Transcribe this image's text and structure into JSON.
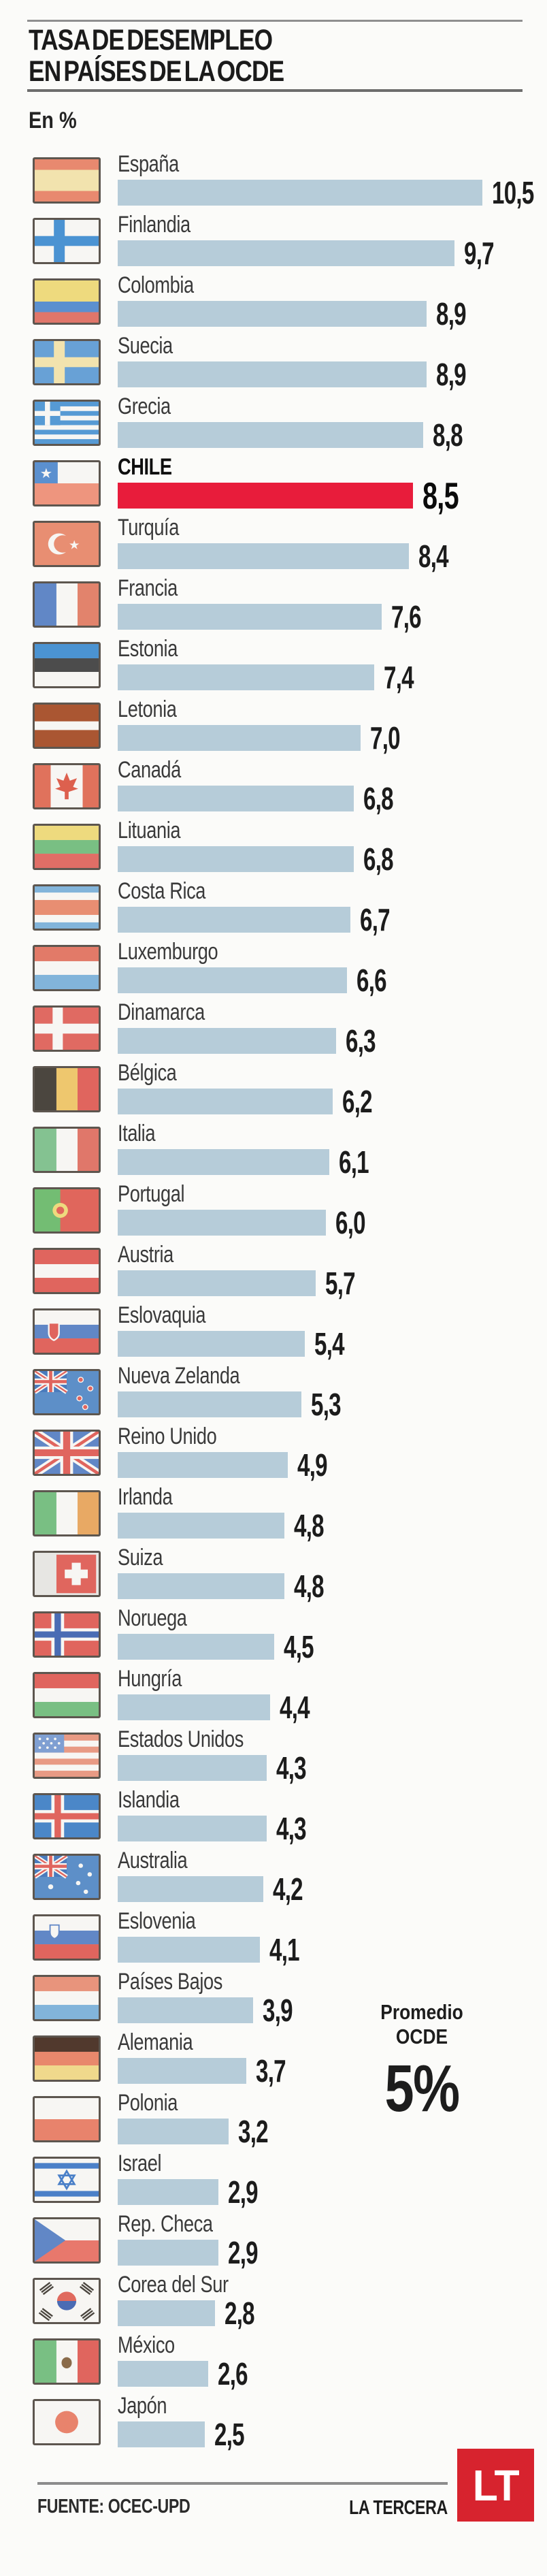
{
  "title": {
    "line1": "TASA DE DESEMPLEO",
    "line2": "EN PAÍSES DE LA OCDE"
  },
  "unit_label": "En %",
  "average": {
    "line1": "Promedio",
    "line2": "OCDE",
    "value": "5%"
  },
  "footer": {
    "source": "FUENTE: OCEC-UPD",
    "brand": "LA TERCERA",
    "logo_text": "LT"
  },
  "colors": {
    "bar": "#b6ccd9",
    "highlight_bar": "#e81c3b",
    "logo_red": "#d7232e",
    "flag_border": "#5d564f"
  },
  "chart_data": {
    "type": "bar",
    "orientation": "horizontal",
    "title": "TASA DE DESEMPLEO EN PAÍSES DE LA OCDE",
    "unit": "En %",
    "xlim": [
      0,
      10.5
    ],
    "grid": false,
    "average_label": "Promedio OCDE",
    "average_value": "5%",
    "highlighted_category": "CHILE",
    "rows": [
      {
        "country": "España",
        "flag": "es",
        "value": 10.5,
        "display": "10,5",
        "highlight": false
      },
      {
        "country": "Finlandia",
        "flag": "fi",
        "value": 9.7,
        "display": "9,7",
        "highlight": false
      },
      {
        "country": "Colombia",
        "flag": "co",
        "value": 8.9,
        "display": "8,9",
        "highlight": false
      },
      {
        "country": "Suecia",
        "flag": "se",
        "value": 8.9,
        "display": "8,9",
        "highlight": false
      },
      {
        "country": "Grecia",
        "flag": "gr",
        "value": 8.8,
        "display": "8,8",
        "highlight": false
      },
      {
        "country": "CHILE",
        "flag": "cl",
        "value": 8.5,
        "display": "8,5",
        "highlight": true
      },
      {
        "country": "Turquía",
        "flag": "tr",
        "value": 8.4,
        "display": "8,4",
        "highlight": false
      },
      {
        "country": "Francia",
        "flag": "fr",
        "value": 7.6,
        "display": "7,6",
        "highlight": false
      },
      {
        "country": "Estonia",
        "flag": "ee",
        "value": 7.4,
        "display": "7,4",
        "highlight": false
      },
      {
        "country": "Letonia",
        "flag": "lv",
        "value": 7.0,
        "display": "7,0",
        "highlight": false
      },
      {
        "country": "Canadá",
        "flag": "ca",
        "value": 6.8,
        "display": "6,8",
        "highlight": false
      },
      {
        "country": "Lituania",
        "flag": "lt",
        "value": 6.8,
        "display": "6,8",
        "highlight": false
      },
      {
        "country": "Costa Rica",
        "flag": "cr",
        "value": 6.7,
        "display": "6,7",
        "highlight": false
      },
      {
        "country": "Luxemburgo",
        "flag": "lu",
        "value": 6.6,
        "display": "6,6",
        "highlight": false
      },
      {
        "country": "Dinamarca",
        "flag": "dk",
        "value": 6.3,
        "display": "6,3",
        "highlight": false
      },
      {
        "country": "Bélgica",
        "flag": "be",
        "value": 6.2,
        "display": "6,2",
        "highlight": false
      },
      {
        "country": "Italia",
        "flag": "it",
        "value": 6.1,
        "display": "6,1",
        "highlight": false
      },
      {
        "country": "Portugal",
        "flag": "pt",
        "value": 6.0,
        "display": "6,0",
        "highlight": false
      },
      {
        "country": "Austria",
        "flag": "at",
        "value": 5.7,
        "display": "5,7",
        "highlight": false
      },
      {
        "country": "Eslovaquia",
        "flag": "sk",
        "value": 5.4,
        "display": "5,4",
        "highlight": false
      },
      {
        "country": "Nueva Zelanda",
        "flag": "nz",
        "value": 5.3,
        "display": "5,3",
        "highlight": false
      },
      {
        "country": "Reino Unido",
        "flag": "gb",
        "value": 4.9,
        "display": "4,9",
        "highlight": false
      },
      {
        "country": "Irlanda",
        "flag": "ie",
        "value": 4.8,
        "display": "4,8",
        "highlight": false
      },
      {
        "country": "Suiza",
        "flag": "ch",
        "value": 4.8,
        "display": "4,8",
        "highlight": false
      },
      {
        "country": "Noruega",
        "flag": "no",
        "value": 4.5,
        "display": "4,5",
        "highlight": false
      },
      {
        "country": "Hungría",
        "flag": "hu",
        "value": 4.4,
        "display": "4,4",
        "highlight": false
      },
      {
        "country": "Estados Unidos",
        "flag": "us",
        "value": 4.3,
        "display": "4,3",
        "highlight": false
      },
      {
        "country": "Islandia",
        "flag": "is",
        "value": 4.3,
        "display": "4,3",
        "highlight": false
      },
      {
        "country": "Australia",
        "flag": "au",
        "value": 4.2,
        "display": "4,2",
        "highlight": false
      },
      {
        "country": "Eslovenia",
        "flag": "si",
        "value": 4.1,
        "display": "4,1",
        "highlight": false
      },
      {
        "country": "Países Bajos",
        "flag": "nl",
        "value": 3.9,
        "display": "3,9",
        "highlight": false
      },
      {
        "country": "Alemania",
        "flag": "de",
        "value": 3.7,
        "display": "3,7",
        "highlight": false
      },
      {
        "country": "Polonia",
        "flag": "pl",
        "value": 3.2,
        "display": "3,2",
        "highlight": false
      },
      {
        "country": "Israel",
        "flag": "il",
        "value": 2.9,
        "display": "2,9",
        "highlight": false
      },
      {
        "country": "Rep. Checa",
        "flag": "cz",
        "value": 2.9,
        "display": "2,9",
        "highlight": false
      },
      {
        "country": "Corea del Sur",
        "flag": "kr",
        "value": 2.8,
        "display": "2,8",
        "highlight": false
      },
      {
        "country": "México",
        "flag": "mx",
        "value": 2.6,
        "display": "2,6",
        "highlight": false
      },
      {
        "country": "Japón",
        "flag": "jp",
        "value": 2.5,
        "display": "2,5",
        "highlight": false
      }
    ]
  }
}
